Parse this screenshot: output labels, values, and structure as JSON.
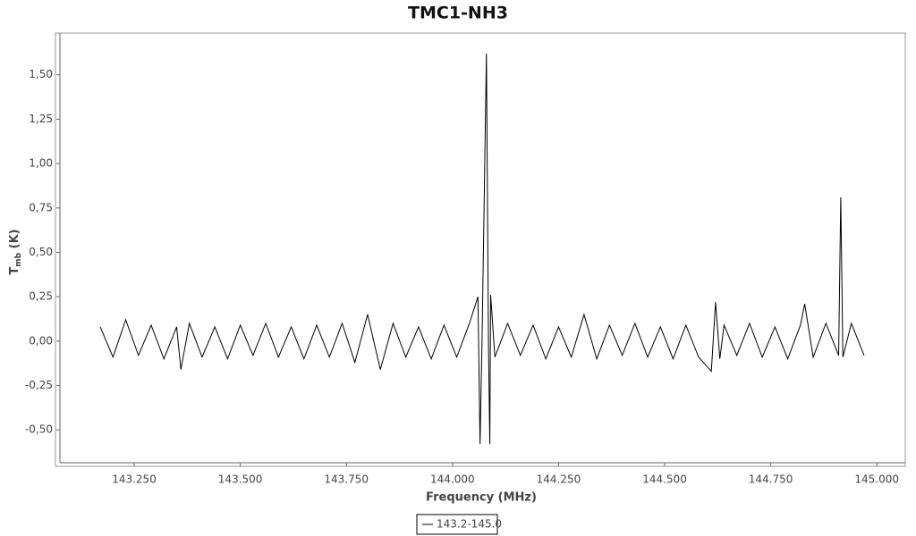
{
  "chart_data": {
    "type": "line",
    "title": "TMC1-NH3",
    "xlabel": "Frequency (MHz)",
    "ylabel": [
      "T",
      "mb",
      " (K)"
    ],
    "x": [
      143.17,
      143.2,
      143.23,
      143.26,
      143.29,
      143.32,
      143.35,
      143.36,
      143.38,
      143.41,
      143.44,
      143.47,
      143.5,
      143.53,
      143.56,
      143.59,
      143.62,
      143.65,
      143.68,
      143.71,
      143.74,
      143.77,
      143.8,
      143.83,
      143.86,
      143.89,
      143.92,
      143.95,
      143.98,
      144.01,
      144.04,
      144.06,
      144.065,
      144.07,
      144.08,
      144.085,
      144.088,
      144.09,
      144.1,
      144.13,
      144.16,
      144.19,
      144.22,
      144.25,
      144.28,
      144.31,
      144.34,
      144.37,
      144.4,
      144.43,
      144.46,
      144.49,
      144.52,
      144.55,
      144.58,
      144.61,
      144.62,
      144.63,
      144.64,
      144.67,
      144.7,
      144.73,
      144.76,
      144.79,
      144.82,
      144.83,
      144.85,
      144.88,
      144.91,
      144.915,
      144.92,
      144.94,
      144.97
    ],
    "series": [
      {
        "name": "143.2-145.0",
        "color": "#000000",
        "values": [
          0.08,
          -0.09,
          0.12,
          -0.08,
          0.09,
          -0.1,
          0.08,
          -0.16,
          0.1,
          -0.09,
          0.08,
          -0.1,
          0.09,
          -0.08,
          0.1,
          -0.09,
          0.08,
          -0.1,
          0.09,
          -0.09,
          0.1,
          -0.12,
          0.15,
          -0.16,
          0.1,
          -0.09,
          0.08,
          -0.1,
          0.09,
          -0.09,
          0.1,
          0.25,
          -0.58,
          0.05,
          1.62,
          -0.05,
          -0.58,
          0.26,
          -0.09,
          0.1,
          -0.08,
          0.09,
          -0.1,
          0.08,
          -0.09,
          0.15,
          -0.1,
          0.09,
          -0.08,
          0.1,
          -0.09,
          0.08,
          -0.1,
          0.09,
          -0.09,
          -0.17,
          0.22,
          -0.1,
          0.09,
          -0.08,
          0.1,
          -0.09,
          0.08,
          -0.1,
          0.09,
          0.21,
          -0.09,
          0.1,
          -0.08,
          0.81,
          -0.09,
          0.1,
          -0.08
        ]
      }
    ],
    "xlim": [
      143.075,
      145.067
    ],
    "ylim": [
      -0.695,
      1.73
    ],
    "xticks": [
      {
        "value": 143.25,
        "label": "143.250"
      },
      {
        "value": 143.5,
        "label": "143.500"
      },
      {
        "value": 143.75,
        "label": "143.750"
      },
      {
        "value": 144,
        "label": "144.000"
      },
      {
        "value": 144.25,
        "label": "144.250"
      },
      {
        "value": 144.5,
        "label": "144.500"
      },
      {
        "value": 144.75,
        "label": "144.750"
      },
      {
        "value": 145,
        "label": "145.000"
      }
    ],
    "yticks": [
      {
        "value": -0.5,
        "label": "-0,50"
      },
      {
        "value": -0.25,
        "label": "-0,25"
      },
      {
        "value": 0,
        "label": "0,00"
      },
      {
        "value": 0.25,
        "label": "0,25"
      },
      {
        "value": 0.5,
        "label": "0,50"
      },
      {
        "value": 0.75,
        "label": "0,75"
      },
      {
        "value": 1,
        "label": "1,00"
      },
      {
        "value": 1.25,
        "label": "1,25"
      },
      {
        "value": 1.5,
        "label": "1,50"
      }
    ],
    "grid": false,
    "legend": "bottom"
  }
}
